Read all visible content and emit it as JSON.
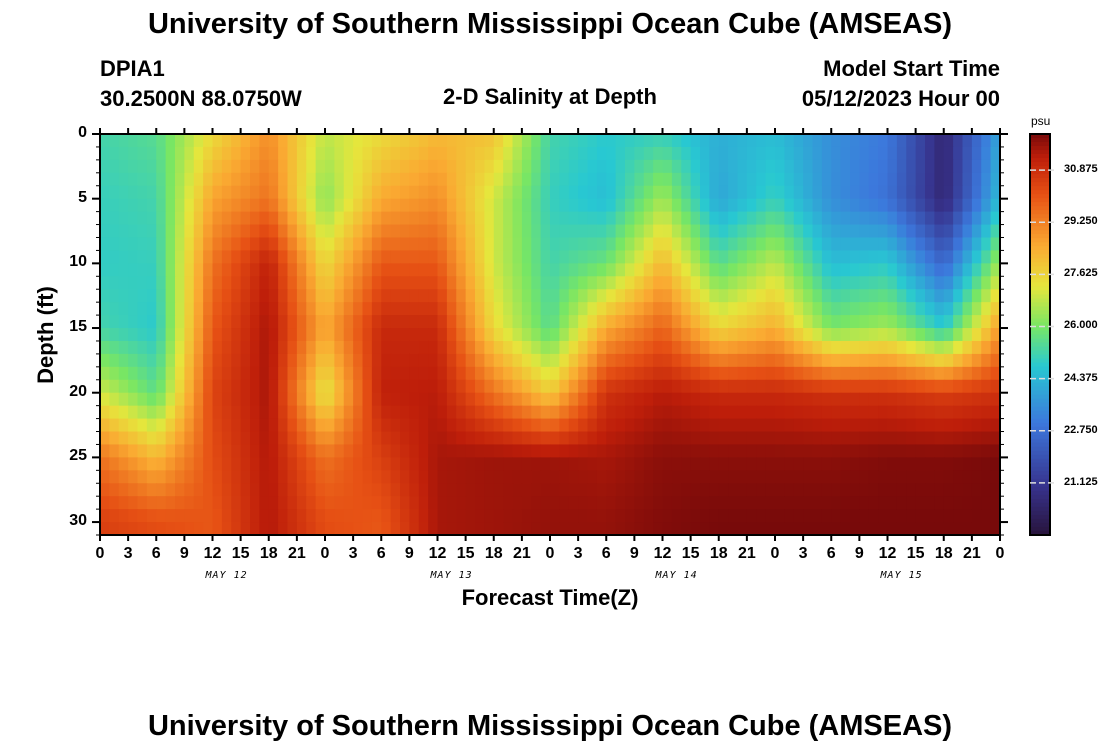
{
  "page_title": "University of Southern Mississippi Ocean Cube (AMSEAS)",
  "footer_title": "University of Southern Mississippi Ocean Cube (AMSEAS)",
  "station": {
    "id": "DPIA1",
    "coords": "30.2500N  88.0750W"
  },
  "model_start": {
    "label": "Model Start Time",
    "value": "05/12/2023 Hour 00"
  },
  "colorbar": {
    "unit": "psu",
    "ticks": [
      "30.875",
      "29.250",
      "27.625",
      "26.000",
      "24.375",
      "22.750",
      "21.125"
    ],
    "range": [
      19.5,
      32.0
    ]
  },
  "chart_data": {
    "type": "heatmap",
    "title": "2-D Salinity at Depth",
    "xlabel": "Forecast Time(Z)",
    "ylabel": "Depth (ft)",
    "x_tick_labels": [
      "0",
      "3",
      "6",
      "9",
      "12",
      "15",
      "18",
      "21",
      "0",
      "3",
      "6",
      "9",
      "12",
      "15",
      "18",
      "21",
      "0",
      "3",
      "6",
      "9",
      "12",
      "15",
      "18",
      "21",
      "0",
      "3",
      "6",
      "9",
      "12",
      "15",
      "18",
      "21",
      "0"
    ],
    "day_labels": [
      "MAY 12",
      "MAY 13",
      "MAY 14",
      "MAY 15"
    ],
    "y_ticks": [
      0,
      5,
      10,
      15,
      20,
      25,
      30
    ],
    "ylim": [
      0,
      31
    ],
    "xlim_hours": [
      0,
      96
    ],
    "value_range_psu": [
      19.5,
      32.0
    ],
    "depths_ft": [
      0,
      5,
      10,
      15,
      20,
      25,
      30
    ],
    "hours": [
      0,
      6,
      12,
      18,
      24,
      30,
      36,
      42,
      48,
      54,
      60,
      66,
      72,
      78,
      84,
      90,
      96
    ],
    "salinity_psu": [
      [
        25.2,
        25.5,
        27.5,
        29.0,
        26.8,
        27.5,
        28.2,
        28.0,
        25.2,
        24.8,
        25.0,
        24.2,
        24.5,
        23.5,
        23.0,
        20.5,
        24.0
      ],
      [
        25.0,
        25.2,
        28.6,
        29.5,
        26.2,
        28.5,
        29.0,
        27.0,
        25.0,
        24.5,
        26.5,
        24.0,
        25.0,
        23.5,
        22.8,
        20.5,
        24.5
      ],
      [
        24.9,
        25.0,
        29.5,
        31.2,
        27.5,
        30.0,
        30.0,
        27.0,
        25.2,
        25.8,
        28.2,
        25.5,
        26.8,
        24.5,
        24.8,
        22.5,
        26.5
      ],
      [
        25.2,
        24.8,
        30.0,
        31.5,
        28.5,
        31.0,
        31.0,
        27.5,
        25.5,
        28.5,
        29.8,
        27.6,
        28.4,
        26.0,
        26.5,
        24.8,
        28.8
      ],
      [
        27.0,
        25.6,
        30.4,
        31.5,
        27.2,
        31.2,
        31.3,
        29.5,
        27.8,
        30.8,
        31.3,
        31.0,
        31.0,
        30.8,
        30.8,
        30.5,
        30.8
      ],
      [
        29.5,
        28.2,
        30.2,
        31.4,
        29.5,
        30.5,
        31.5,
        31.6,
        31.6,
        31.5,
        31.8,
        31.8,
        31.8,
        31.8,
        31.9,
        31.9,
        32.0
      ],
      [
        30.5,
        30.2,
        30.0,
        31.4,
        30.2,
        30.0,
        31.5,
        31.6,
        31.7,
        31.7,
        31.9,
        32.0,
        32.0,
        32.0,
        32.0,
        32.0,
        32.0
      ]
    ]
  }
}
